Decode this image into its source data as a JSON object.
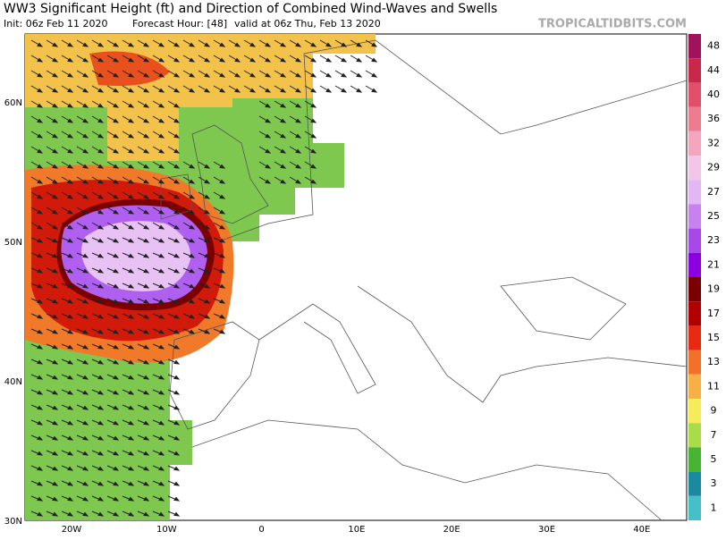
{
  "header": {
    "title": "WW3 Significant Height (ft) and Direction of Combined Wind-Waves and Swells",
    "init": "Init: 06z Feb 11 2020",
    "forecast_hour": "Forecast Hour: [48]",
    "valid": "valid at 06z Thu, Feb 13 2020",
    "brand": "TROPICALTIDBITS.COM"
  },
  "map": {
    "lat_labels": [
      "60N",
      "50N",
      "40N",
      "30N"
    ],
    "lon_labels": [
      "20W",
      "10W",
      "0",
      "10E",
      "20E",
      "30E",
      "40E"
    ]
  },
  "colorbar": {
    "labels": [
      "48",
      "44",
      "40",
      "36",
      "32",
      "29",
      "27",
      "25",
      "23",
      "21",
      "19",
      "17",
      "15",
      "13",
      "11",
      "9",
      "7",
      "5",
      "3",
      "1"
    ],
    "colors": [
      "#a0125a",
      "#c8284a",
      "#e0506a",
      "#ec7c90",
      "#f2a6c0",
      "#f2c6e6",
      "#e2b8f4",
      "#c882f0",
      "#a848e8",
      "#8a00e0",
      "#7a0000",
      "#b00000",
      "#e82a12",
      "#f2702a",
      "#f6b046",
      "#f4ec5a",
      "#a8dc48",
      "#48b434",
      "#1a8aa0",
      "#46c0c8"
    ]
  }
}
